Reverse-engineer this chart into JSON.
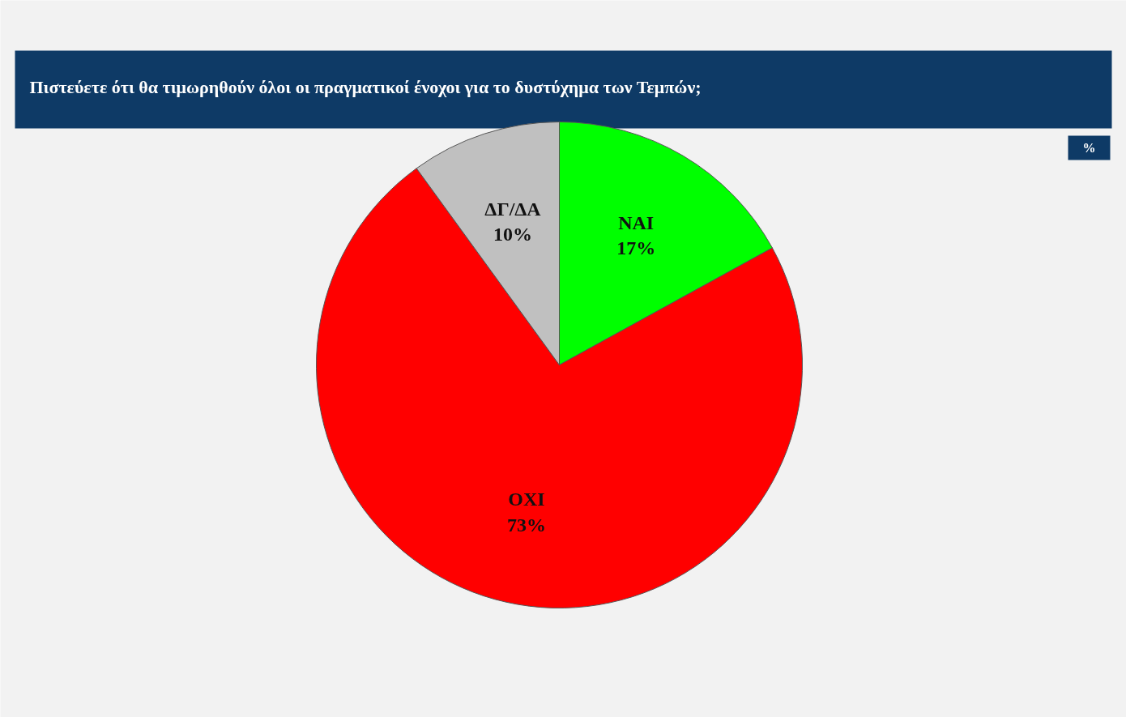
{
  "chart_data": {
    "type": "pie",
    "title": "Πιστεύετε ότι θα τιμωρηθούν όλοι οι πραγματικοί ένοχοι για το δυστύχημα των Τεμπών;",
    "categories": [
      "ΝΑΙ",
      "ΟΧΙ",
      "ΔΓ/ΔΑ"
    ],
    "values": [
      17,
      73,
      10
    ],
    "colors": [
      "#00ff00",
      "#ff0000",
      "#c0c0c0"
    ],
    "value_labels": [
      "17%",
      "73%",
      "10%"
    ],
    "annotations": [
      "%"
    ]
  }
}
